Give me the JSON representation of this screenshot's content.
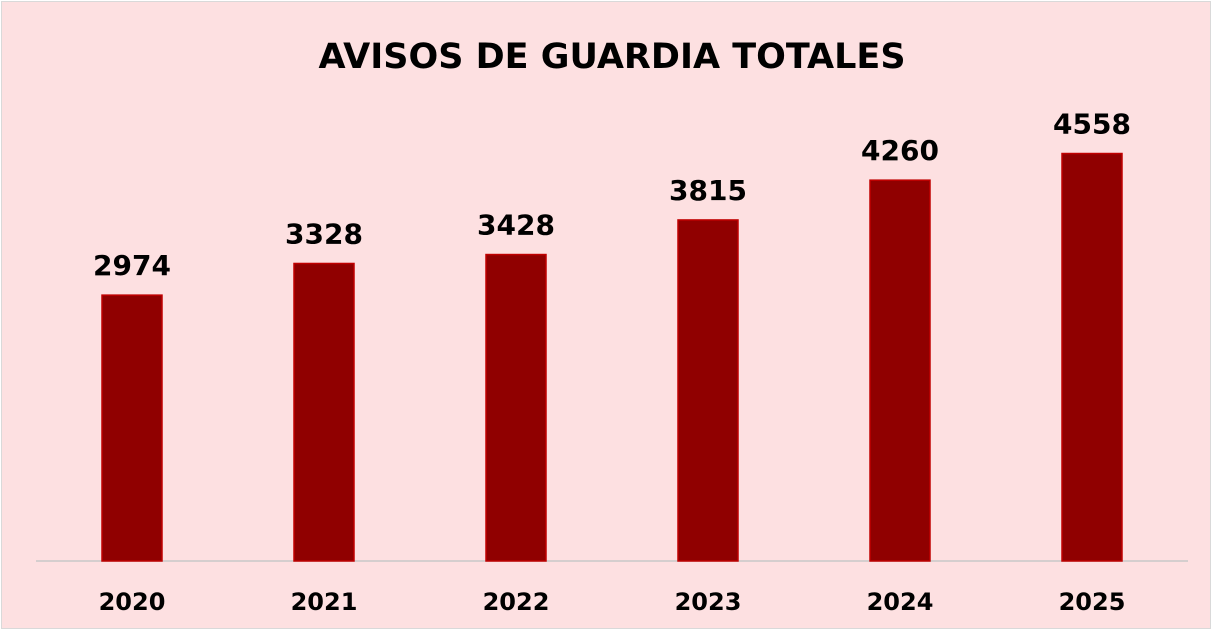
{
  "chart_data": {
    "type": "bar",
    "title": "AVISOS DE GUARDIA TOTALES",
    "categories": [
      "2020",
      "2021",
      "2022",
      "2023",
      "2024",
      "2025"
    ],
    "values": [
      2974,
      3328,
      3428,
      3815,
      4260,
      4558
    ],
    "color": "#900000",
    "ylim": [
      0,
      5000
    ]
  }
}
